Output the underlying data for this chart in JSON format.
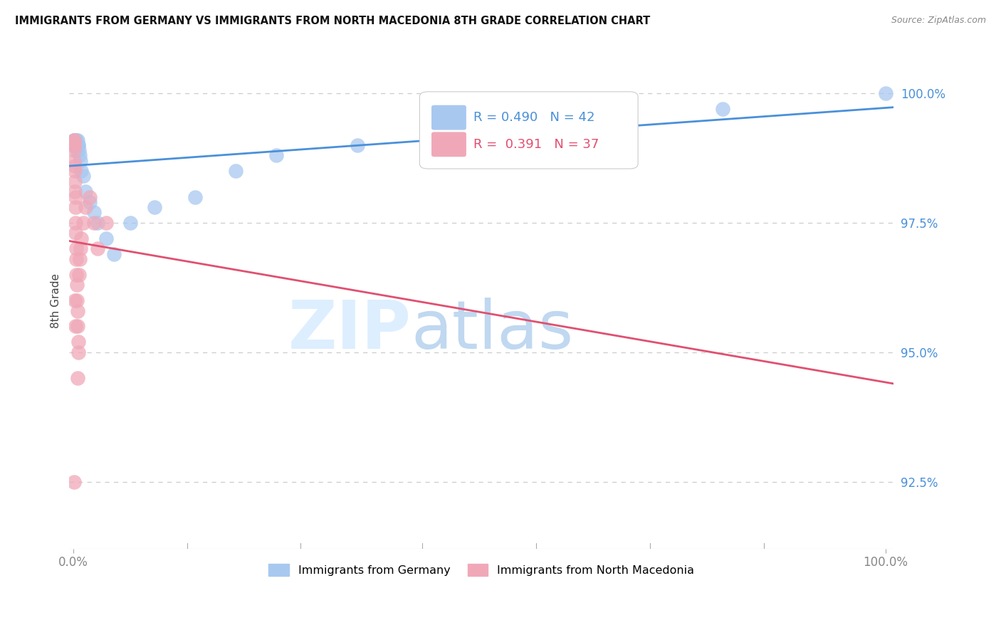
{
  "title": "IMMIGRANTS FROM GERMANY VS IMMIGRANTS FROM NORTH MACEDONIA 8TH GRADE CORRELATION CHART",
  "source": "Source: ZipAtlas.com",
  "ylabel": "8th Grade",
  "legend_blue": "Immigrants from Germany",
  "legend_pink": "Immigrants from North Macedonia",
  "R_blue": 0.49,
  "N_blue": 42,
  "R_pink": 0.391,
  "N_pink": 37,
  "color_blue": "#a8c8f0",
  "color_pink": "#f0a8b8",
  "line_blue": "#4a90d9",
  "line_pink": "#e05070",
  "blue_x": [
    0.05,
    0.08,
    0.1,
    0.12,
    0.15,
    0.15,
    0.18,
    0.2,
    0.22,
    0.25,
    0.28,
    0.3,
    0.32,
    0.35,
    0.38,
    0.4,
    0.45,
    0.5,
    0.55,
    0.6,
    0.65,
    0.7,
    0.8,
    0.9,
    1.0,
    1.2,
    1.5,
    2.0,
    2.5,
    3.0,
    4.0,
    5.0,
    7.0,
    10.0,
    15.0,
    20.0,
    25.0,
    35.0,
    50.0,
    65.0,
    80.0,
    100.0
  ],
  "blue_y": [
    99.0,
    99.1,
    99.0,
    99.1,
    99.0,
    99.1,
    99.0,
    99.0,
    99.1,
    99.0,
    99.0,
    99.1,
    99.0,
    99.0,
    99.1,
    98.9,
    99.0,
    99.1,
    99.0,
    99.0,
    99.0,
    98.9,
    98.8,
    98.7,
    98.5,
    98.4,
    98.1,
    97.9,
    97.7,
    97.5,
    97.2,
    96.9,
    97.5,
    97.8,
    98.0,
    98.5,
    98.8,
    99.0,
    99.2,
    99.5,
    99.7,
    100.0
  ],
  "pink_x": [
    0.05,
    0.07,
    0.08,
    0.1,
    0.1,
    0.12,
    0.15,
    0.15,
    0.18,
    0.2,
    0.22,
    0.25,
    0.28,
    0.3,
    0.32,
    0.35,
    0.38,
    0.4,
    0.45,
    0.5,
    0.55,
    0.6,
    0.65,
    0.7,
    0.8,
    0.9,
    1.0,
    1.2,
    1.5,
    2.0,
    2.5,
    3.0,
    4.0,
    0.2,
    0.3,
    0.5,
    0.1
  ],
  "pink_y": [
    99.1,
    99.0,
    99.1,
    98.9,
    99.0,
    98.7,
    98.5,
    98.6,
    98.3,
    98.1,
    98.0,
    97.8,
    97.5,
    97.3,
    97.0,
    96.8,
    96.5,
    96.3,
    96.0,
    95.8,
    95.5,
    95.2,
    95.0,
    96.5,
    96.8,
    97.0,
    97.2,
    97.5,
    97.8,
    98.0,
    97.5,
    97.0,
    97.5,
    96.0,
    95.5,
    94.5,
    92.5
  ],
  "yticks": [
    92.5,
    95.0,
    97.5,
    100.0
  ],
  "ylabels": [
    "92.5%",
    "95.0%",
    "97.5%",
    "100.0%"
  ],
  "ymin": 91.2,
  "ymax": 100.8,
  "xmin": -0.5,
  "xmax": 101.0
}
